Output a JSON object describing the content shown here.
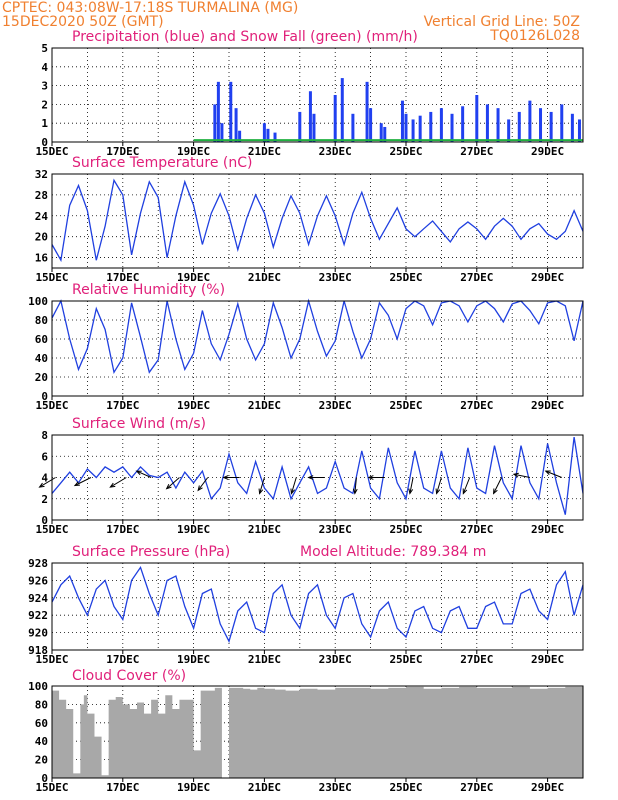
{
  "header": {
    "line1": "CPTEC:   043:08W-17:18S   TURMALINA (MG)",
    "line2": "15DEC2020  50Z (GMT)",
    "vgrid": "Vertical Grid Line: 50Z",
    "code": "TQ0126L028"
  },
  "x_ticks": [
    "15DEC",
    "17DEC",
    "19DEC",
    "21DEC",
    "23DEC",
    "25DEC",
    "27DEC",
    "29DEC"
  ],
  "colors": {
    "precip": "#2040f0",
    "snow": "#20b040",
    "line": "#2040e0",
    "cloud": "#a8a8a8",
    "title": "#e0207a",
    "header": "#f08030"
  },
  "chart_data": [
    {
      "type": "bar",
      "title": "Precipitation (blue) and Snow Fall (green) (mm/h)",
      "ylim": [
        0,
        5
      ],
      "yticks": [
        "0",
        "1",
        "2",
        "3",
        "4",
        "5"
      ],
      "x_days": [
        0,
        15
      ],
      "series": [
        {
          "name": "Precipitation",
          "x": [
            4.6,
            4.7,
            4.8,
            5.05,
            5.2,
            5.3,
            6.0,
            6.1,
            6.3,
            7.0,
            7.3,
            7.4,
            8.0,
            8.2,
            8.5,
            8.9,
            9.0,
            9.3,
            9.4,
            9.9,
            10.0,
            10.2,
            10.4,
            10.7,
            11.0,
            11.3,
            11.6,
            12.0,
            12.3,
            12.6,
            12.9,
            13.2,
            13.5,
            13.8,
            14.1,
            14.4,
            14.7,
            14.9
          ],
          "values": [
            2.0,
            3.2,
            1.0,
            3.2,
            1.8,
            0.6,
            1.0,
            0.7,
            0.5,
            1.6,
            2.7,
            1.5,
            2.5,
            3.4,
            1.5,
            3.2,
            1.8,
            1.0,
            0.8,
            2.2,
            1.5,
            1.2,
            1.4,
            1.6,
            1.8,
            1.5,
            1.9,
            2.5,
            2.0,
            1.8,
            1.2,
            1.6,
            2.2,
            1.8,
            1.6,
            2.0,
            1.5,
            1.2
          ]
        },
        {
          "name": "Snow Fall",
          "x": [
            4.0,
            15.0
          ],
          "values": [
            0.1,
            0.1
          ]
        }
      ]
    },
    {
      "type": "line",
      "title": "Surface Temperature (nC)",
      "ylim": [
        14,
        32
      ],
      "yticks": [
        "16",
        "20",
        "24",
        "28",
        "32"
      ],
      "x": [
        0,
        0.25,
        0.5,
        0.75,
        1.0,
        1.25,
        1.5,
        1.75,
        2.0,
        2.25,
        2.5,
        2.75,
        3.0,
        3.25,
        3.5,
        3.75,
        4.0,
        4.25,
        4.5,
        4.75,
        5.0,
        5.25,
        5.5,
        5.75,
        6.0,
        6.25,
        6.5,
        6.75,
        7.0,
        7.25,
        7.5,
        7.75,
        8.0,
        8.25,
        8.5,
        8.75,
        9.0,
        9.25,
        9.5,
        9.75,
        10.0,
        10.25,
        10.5,
        10.75,
        11.0,
        11.25,
        11.5,
        11.75,
        12.0,
        12.25,
        12.5,
        12.75,
        13.0,
        13.25,
        13.5,
        13.75,
        14.0,
        14.25,
        14.5,
        14.75,
        15.0
      ],
      "values": [
        18.5,
        15.5,
        26.0,
        29.8,
        25.0,
        15.5,
        22.0,
        30.8,
        28.0,
        16.5,
        24.5,
        30.5,
        27.5,
        16.0,
        24.0,
        30.5,
        26.0,
        18.5,
        24.5,
        28.2,
        24.0,
        17.5,
        23.5,
        28.0,
        24.5,
        18.0,
        23.5,
        27.8,
        24.5,
        18.5,
        24.0,
        27.8,
        24.0,
        18.5,
        24.5,
        28.5,
        23.5,
        19.5,
        22.5,
        25.5,
        21.5,
        20.0,
        21.5,
        23.0,
        21.0,
        19.0,
        21.5,
        22.8,
        21.5,
        19.5,
        22.0,
        23.5,
        22.0,
        19.5,
        21.5,
        22.5,
        20.5,
        19.5,
        21.0,
        25.0,
        21.0
      ]
    },
    {
      "type": "line",
      "title": "Relative Humidity (%)",
      "ylim": [
        0,
        100
      ],
      "yticks": [
        "0",
        "20",
        "40",
        "60",
        "80",
        "100"
      ],
      "x": [
        0,
        0.25,
        0.5,
        0.75,
        1.0,
        1.25,
        1.5,
        1.75,
        2.0,
        2.25,
        2.5,
        2.75,
        3.0,
        3.25,
        3.5,
        3.75,
        4.0,
        4.25,
        4.5,
        4.75,
        5.0,
        5.25,
        5.5,
        5.75,
        6.0,
        6.25,
        6.5,
        6.75,
        7.0,
        7.25,
        7.5,
        7.75,
        8.0,
        8.25,
        8.5,
        8.75,
        9.0,
        9.25,
        9.5,
        9.75,
        10.0,
        10.25,
        10.5,
        10.75,
        11.0,
        11.25,
        11.5,
        11.75,
        12.0,
        12.25,
        12.5,
        12.75,
        13.0,
        13.25,
        13.5,
        13.75,
        14.0,
        14.25,
        14.5,
        14.75,
        15.0
      ],
      "values": [
        82,
        100,
        60,
        28,
        50,
        92,
        70,
        25,
        40,
        98,
        62,
        25,
        38,
        100,
        60,
        28,
        45,
        90,
        55,
        38,
        65,
        97,
        60,
        38,
        55,
        98,
        72,
        40,
        60,
        100,
        68,
        42,
        58,
        100,
        68,
        40,
        60,
        98,
        85,
        60,
        92,
        100,
        95,
        75,
        98,
        100,
        95,
        78,
        95,
        100,
        92,
        78,
        97,
        100,
        90,
        76,
        98,
        100,
        95,
        58,
        100
      ]
    },
    {
      "type": "line",
      "title": "Surface Wind (m/s)",
      "ylim": [
        0,
        8
      ],
      "yticks": [
        "0",
        "2",
        "4",
        "6",
        "8"
      ],
      "x": [
        0,
        0.25,
        0.5,
        0.75,
        1.0,
        1.25,
        1.5,
        1.75,
        2.0,
        2.25,
        2.5,
        2.75,
        3.0,
        3.25,
        3.5,
        3.75,
        4.0,
        4.25,
        4.5,
        4.75,
        5.0,
        5.25,
        5.5,
        5.75,
        6.0,
        6.25,
        6.5,
        6.75,
        7.0,
        7.25,
        7.5,
        7.75,
        8.0,
        8.25,
        8.5,
        8.75,
        9.0,
        9.25,
        9.5,
        9.75,
        10.0,
        10.25,
        10.5,
        10.75,
        11.0,
        11.25,
        11.5,
        11.75,
        12.0,
        12.25,
        12.5,
        12.75,
        13.0,
        13.25,
        13.5,
        13.75,
        14.0,
        14.25,
        14.5,
        14.75,
        15.0
      ],
      "values": [
        2.5,
        3.5,
        4.5,
        3.5,
        4.8,
        4.0,
        5.0,
        4.5,
        5.0,
        4.0,
        5.0,
        4.2,
        4.0,
        4.5,
        3.0,
        4.5,
        3.5,
        4.6,
        2.0,
        3.0,
        6.2,
        3.5,
        2.5,
        5.5,
        3.0,
        2.0,
        5.0,
        2.0,
        3.5,
        5.0,
        2.5,
        3.0,
        5.5,
        3.0,
        2.5,
        6.5,
        3.0,
        2.0,
        6.8,
        3.5,
        2.0,
        6.5,
        3.0,
        2.5,
        6.5,
        3.0,
        2.0,
        6.8,
        3.0,
        2.5,
        7.0,
        3.5,
        2.0,
        7.0,
        3.5,
        2.0,
        7.2,
        3.5,
        0.5,
        7.8,
        2.5
      ],
      "arrows": [
        {
          "x": 0.1,
          "dx": -1,
          "dy": 0.6
        },
        {
          "x": 1.1,
          "dx": -1,
          "dy": 0.5
        },
        {
          "x": 2.1,
          "dx": -1,
          "dy": 0.6
        },
        {
          "x": 2.8,
          "dx": -0.9,
          "dy": -0.4
        },
        {
          "x": 3.6,
          "dx": -0.8,
          "dy": 0.7
        },
        {
          "x": 4.4,
          "dx": -0.6,
          "dy": 0.8
        },
        {
          "x": 5.3,
          "dx": -1,
          "dy": 0
        },
        {
          "x": 6.0,
          "dx": -0.3,
          "dy": 1
        },
        {
          "x": 6.9,
          "dx": -0.3,
          "dy": 1
        },
        {
          "x": 7.7,
          "dx": -1,
          "dy": 0
        },
        {
          "x": 8.6,
          "dx": -0.1,
          "dy": 1
        },
        {
          "x": 9.4,
          "dx": -1,
          "dy": 0
        },
        {
          "x": 10.2,
          "dx": -0.2,
          "dy": 1
        },
        {
          "x": 11.0,
          "dx": -0.3,
          "dy": 1
        },
        {
          "x": 11.8,
          "dx": -0.4,
          "dy": 1
        },
        {
          "x": 12.7,
          "dx": -0.5,
          "dy": 1
        },
        {
          "x": 13.5,
          "dx": -1,
          "dy": -0.2
        },
        {
          "x": 14.4,
          "dx": -1,
          "dy": -0.4
        }
      ]
    },
    {
      "type": "line",
      "title": "Surface Pressure (hPa)",
      "annotation": "Model Altitude: 789.384 m",
      "ylim": [
        918,
        928
      ],
      "yticks": [
        "918",
        "920",
        "922",
        "924",
        "926",
        "928"
      ],
      "x": [
        0,
        0.25,
        0.5,
        0.75,
        1.0,
        1.25,
        1.5,
        1.75,
        2.0,
        2.25,
        2.5,
        2.75,
        3.0,
        3.25,
        3.5,
        3.75,
        4.0,
        4.25,
        4.5,
        4.75,
        5.0,
        5.25,
        5.5,
        5.75,
        6.0,
        6.25,
        6.5,
        6.75,
        7.0,
        7.25,
        7.5,
        7.75,
        8.0,
        8.25,
        8.5,
        8.75,
        9.0,
        9.25,
        9.5,
        9.75,
        10.0,
        10.25,
        10.5,
        10.75,
        11.0,
        11.25,
        11.5,
        11.75,
        12.0,
        12.25,
        12.5,
        12.75,
        13.0,
        13.25,
        13.5,
        13.75,
        14.0,
        14.25,
        14.5,
        14.75,
        15.0
      ],
      "values": [
        923.5,
        925.5,
        926.5,
        924.0,
        922.0,
        925.0,
        926.0,
        923.0,
        921.5,
        926.0,
        927.5,
        924.5,
        922.0,
        926.0,
        926.5,
        923.0,
        920.5,
        924.5,
        925.0,
        921.0,
        919.0,
        922.5,
        923.5,
        920.5,
        920.0,
        924.5,
        925.5,
        922.0,
        920.5,
        924.5,
        925.5,
        922.0,
        920.5,
        924.0,
        924.5,
        921.0,
        919.5,
        922.5,
        923.5,
        920.5,
        919.5,
        922.5,
        923.0,
        920.5,
        920.0,
        922.5,
        923.0,
        920.5,
        920.5,
        923.0,
        923.5,
        921.0,
        921.0,
        924.5,
        925.0,
        922.5,
        921.5,
        925.5,
        927.0,
        922.0,
        925.5
      ]
    },
    {
      "type": "area",
      "title": "Cloud Cover (%)",
      "ylim": [
        0,
        100
      ],
      "yticks": [
        "0",
        "20",
        "40",
        "60",
        "80",
        "100"
      ],
      "x": [
        0.2,
        0.4,
        0.6,
        0.8,
        0.9,
        1.0,
        1.2,
        1.4,
        1.6,
        1.8,
        2.0,
        2.2,
        2.4,
        2.6,
        2.8,
        3.0,
        3.2,
        3.4,
        3.6,
        3.8,
        4.0,
        4.2,
        4.4,
        4.6,
        4.8,
        5.0,
        5.2,
        5.4,
        5.6,
        5.8,
        6.0,
        6.3,
        6.6,
        7.0,
        7.5,
        8.0,
        8.5,
        9.0,
        9.5,
        10.0,
        10.5,
        11.0,
        11.5,
        12.0,
        12.5,
        13.0,
        13.5,
        14.0,
        14.5,
        15.0
      ],
      "values": [
        95,
        85,
        75,
        5,
        80,
        90,
        70,
        45,
        3,
        85,
        88,
        80,
        75,
        82,
        70,
        85,
        70,
        90,
        75,
        85,
        85,
        30,
        95,
        95,
        98,
        0,
        98,
        98,
        97,
        96,
        98,
        97,
        96,
        95,
        97,
        96,
        98,
        98,
        97,
        98,
        99,
        97,
        98,
        99,
        98,
        98,
        99,
        97,
        98,
        99
      ]
    }
  ]
}
